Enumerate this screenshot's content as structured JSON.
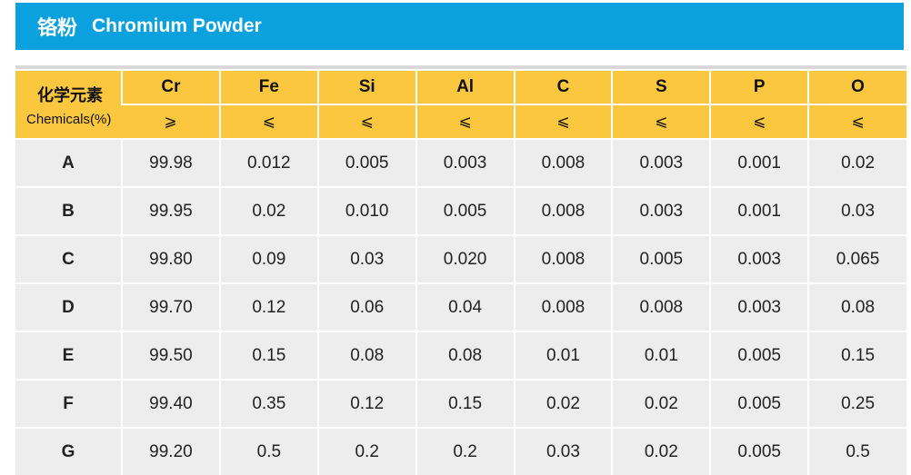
{
  "title": {
    "cn": "铬粉",
    "en": "Chromium Powder"
  },
  "colors": {
    "title_bar": "#0aa1de",
    "header_bg": "#fbc73e",
    "body_bg": "#ededed"
  },
  "table": {
    "corner": {
      "cn": "化学元素",
      "en": "Chemicals(%)"
    },
    "elements": [
      "Cr",
      "Fe",
      "Si",
      "Al",
      "C",
      "S",
      "P",
      "O"
    ],
    "limits": [
      "⩾",
      "⩽",
      "⩽",
      "⩽",
      "⩽",
      "⩽",
      "⩽",
      "⩽"
    ],
    "rows": [
      {
        "grade": "A",
        "values": [
          "99.98",
          "0.012",
          "0.005",
          "0.003",
          "0.008",
          "0.003",
          "0.001",
          "0.02"
        ]
      },
      {
        "grade": "B",
        "values": [
          "99.95",
          "0.02",
          "0.010",
          "0.005",
          "0.008",
          "0.003",
          "0.001",
          "0.03"
        ]
      },
      {
        "grade": "C",
        "values": [
          "99.80",
          "0.09",
          "0.03",
          "0.020",
          "0.008",
          "0.005",
          "0.003",
          "0.065"
        ]
      },
      {
        "grade": "D",
        "values": [
          "99.70",
          "0.12",
          "0.06",
          "0.04",
          "0.008",
          "0.008",
          "0.003",
          "0.08"
        ]
      },
      {
        "grade": "E",
        "values": [
          "99.50",
          "0.15",
          "0.08",
          "0.08",
          "0.01",
          "0.01",
          "0.005",
          "0.15"
        ]
      },
      {
        "grade": "F",
        "values": [
          "99.40",
          "0.35",
          "0.12",
          "0.15",
          "0.02",
          "0.02",
          "0.005",
          "0.25"
        ]
      },
      {
        "grade": "G",
        "values": [
          "99.20",
          "0.5",
          "0.2",
          "0.2",
          "0.03",
          "0.02",
          "0.005",
          "0.5"
        ]
      }
    ]
  }
}
